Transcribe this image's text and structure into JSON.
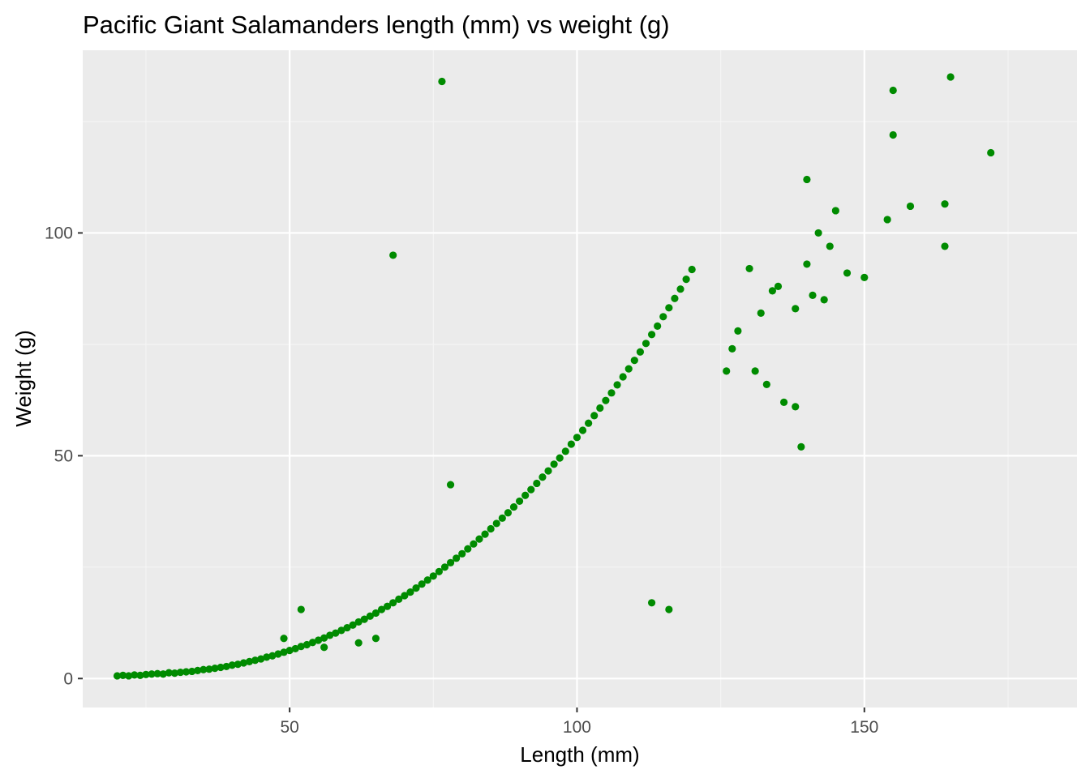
{
  "chart_data": {
    "type": "scatter",
    "title": "Pacific Giant Salamanders length (mm) vs weight (g)",
    "xlabel": "Length (mm)",
    "ylabel": "Weight (g)",
    "xlim": [
      14,
      187
    ],
    "ylim": [
      -6.5,
      141
    ],
    "x_ticks": [
      50,
      100,
      150
    ],
    "y_ticks": [
      0,
      50,
      100
    ],
    "x_tick_labels": [
      "50",
      "100",
      "150"
    ],
    "y_tick_labels": [
      "0",
      "50",
      "100"
    ],
    "grid": true,
    "legend": "none",
    "colors": {
      "panel_background": "#ebebeb",
      "grid_major": "#ffffff",
      "grid_minor": "#f5f5f5",
      "point": "#008b00",
      "tick_label": "#4d4d4d",
      "tick_mark": "#333333"
    },
    "points": [
      [
        20,
        0.6
      ],
      [
        21,
        0.7
      ],
      [
        22,
        0.6
      ],
      [
        23,
        0.8
      ],
      [
        24,
        0.7
      ],
      [
        25,
        0.9
      ],
      [
        26,
        1.0
      ],
      [
        27,
        1.1
      ],
      [
        28,
        1.0
      ],
      [
        29,
        1.3
      ],
      [
        30,
        1.2
      ],
      [
        31,
        1.4
      ],
      [
        32,
        1.5
      ],
      [
        33,
        1.6
      ],
      [
        34,
        1.8
      ],
      [
        35,
        2.0
      ],
      [
        36,
        2.1
      ],
      [
        37,
        2.3
      ],
      [
        38,
        2.5
      ],
      [
        39,
        2.7
      ],
      [
        40,
        3.0
      ],
      [
        41,
        3.2
      ],
      [
        42,
        3.5
      ],
      [
        43,
        3.8
      ],
      [
        44,
        4.1
      ],
      [
        45,
        4.4
      ],
      [
        46,
        4.8
      ],
      [
        47,
        5.1
      ],
      [
        48,
        5.5
      ],
      [
        49,
        5.9
      ],
      [
        50,
        6.3
      ],
      [
        51,
        6.7
      ],
      [
        52,
        7.2
      ],
      [
        53,
        7.6
      ],
      [
        54,
        8.1
      ],
      [
        55,
        8.6
      ],
      [
        56,
        9.1
      ],
      [
        57,
        9.7
      ],
      [
        58,
        10.2
      ],
      [
        59,
        10.8
      ],
      [
        60,
        11.4
      ],
      [
        61,
        12.0
      ],
      [
        62,
        12.7
      ],
      [
        63,
        13.3
      ],
      [
        64,
        14.0
      ],
      [
        65,
        14.7
      ],
      [
        66,
        15.5
      ],
      [
        67,
        16.2
      ],
      [
        68,
        17.0
      ],
      [
        69,
        17.8
      ],
      [
        70,
        18.6
      ],
      [
        71,
        19.4
      ],
      [
        72,
        20.3
      ],
      [
        73,
        21.2
      ],
      [
        74,
        22.1
      ],
      [
        75,
        23.0
      ],
      [
        76,
        24.0
      ],
      [
        77,
        25.0
      ],
      [
        78,
        26.0
      ],
      [
        79,
        27.0
      ],
      [
        80,
        28.0
      ],
      [
        81,
        29.1
      ],
      [
        82,
        30.2
      ],
      [
        83,
        31.3
      ],
      [
        84,
        32.4
      ],
      [
        85,
        33.6
      ],
      [
        86,
        34.8
      ],
      [
        87,
        36.0
      ],
      [
        88,
        37.2
      ],
      [
        89,
        38.5
      ],
      [
        90,
        39.8
      ],
      [
        91,
        41.1
      ],
      [
        92,
        42.4
      ],
      [
        93,
        43.8
      ],
      [
        94,
        45.2
      ],
      [
        95,
        46.6
      ],
      [
        96,
        48.1
      ],
      [
        97,
        49.5
      ],
      [
        98,
        51.0
      ],
      [
        99,
        52.6
      ],
      [
        100,
        54.1
      ],
      [
        101,
        55.7
      ],
      [
        102,
        57.3
      ],
      [
        103,
        59.0
      ],
      [
        104,
        60.7
      ],
      [
        105,
        62.4
      ],
      [
        106,
        64.1
      ],
      [
        107,
        65.9
      ],
      [
        108,
        67.7
      ],
      [
        109,
        69.5
      ],
      [
        110,
        71.4
      ],
      [
        111,
        73.3
      ],
      [
        112,
        75.2
      ],
      [
        113,
        77.2
      ],
      [
        114,
        79.1
      ],
      [
        115,
        81.2
      ],
      [
        116,
        83.2
      ],
      [
        117,
        85.3
      ],
      [
        118,
        87.4
      ],
      [
        119,
        89.6
      ],
      [
        120,
        91.8
      ],
      [
        76.5,
        134
      ],
      [
        68,
        95
      ],
      [
        78,
        43.5
      ],
      [
        113,
        17
      ],
      [
        116,
        15.5
      ],
      [
        65,
        9
      ],
      [
        62,
        8
      ],
      [
        56,
        7
      ],
      [
        52,
        15.5
      ],
      [
        49,
        9
      ],
      [
        140,
        112
      ],
      [
        142,
        100
      ],
      [
        145,
        105
      ],
      [
        144,
        97
      ],
      [
        150,
        90
      ],
      [
        147,
        91
      ],
      [
        130,
        92
      ],
      [
        132,
        82
      ],
      [
        134,
        87
      ],
      [
        135,
        88
      ],
      [
        140,
        93
      ],
      [
        138,
        83
      ],
      [
        141,
        86
      ],
      [
        143,
        85
      ],
      [
        126,
        69
      ],
      [
        127,
        74
      ],
      [
        128,
        78
      ],
      [
        131,
        69
      ],
      [
        133,
        66
      ],
      [
        136,
        62
      ],
      [
        138,
        61
      ],
      [
        139,
        52
      ],
      [
        154,
        103
      ],
      [
        155,
        132
      ],
      [
        155,
        122
      ],
      [
        158,
        106
      ],
      [
        164,
        106.5
      ],
      [
        164,
        97
      ],
      [
        165,
        135
      ],
      [
        172,
        118
      ]
    ]
  }
}
